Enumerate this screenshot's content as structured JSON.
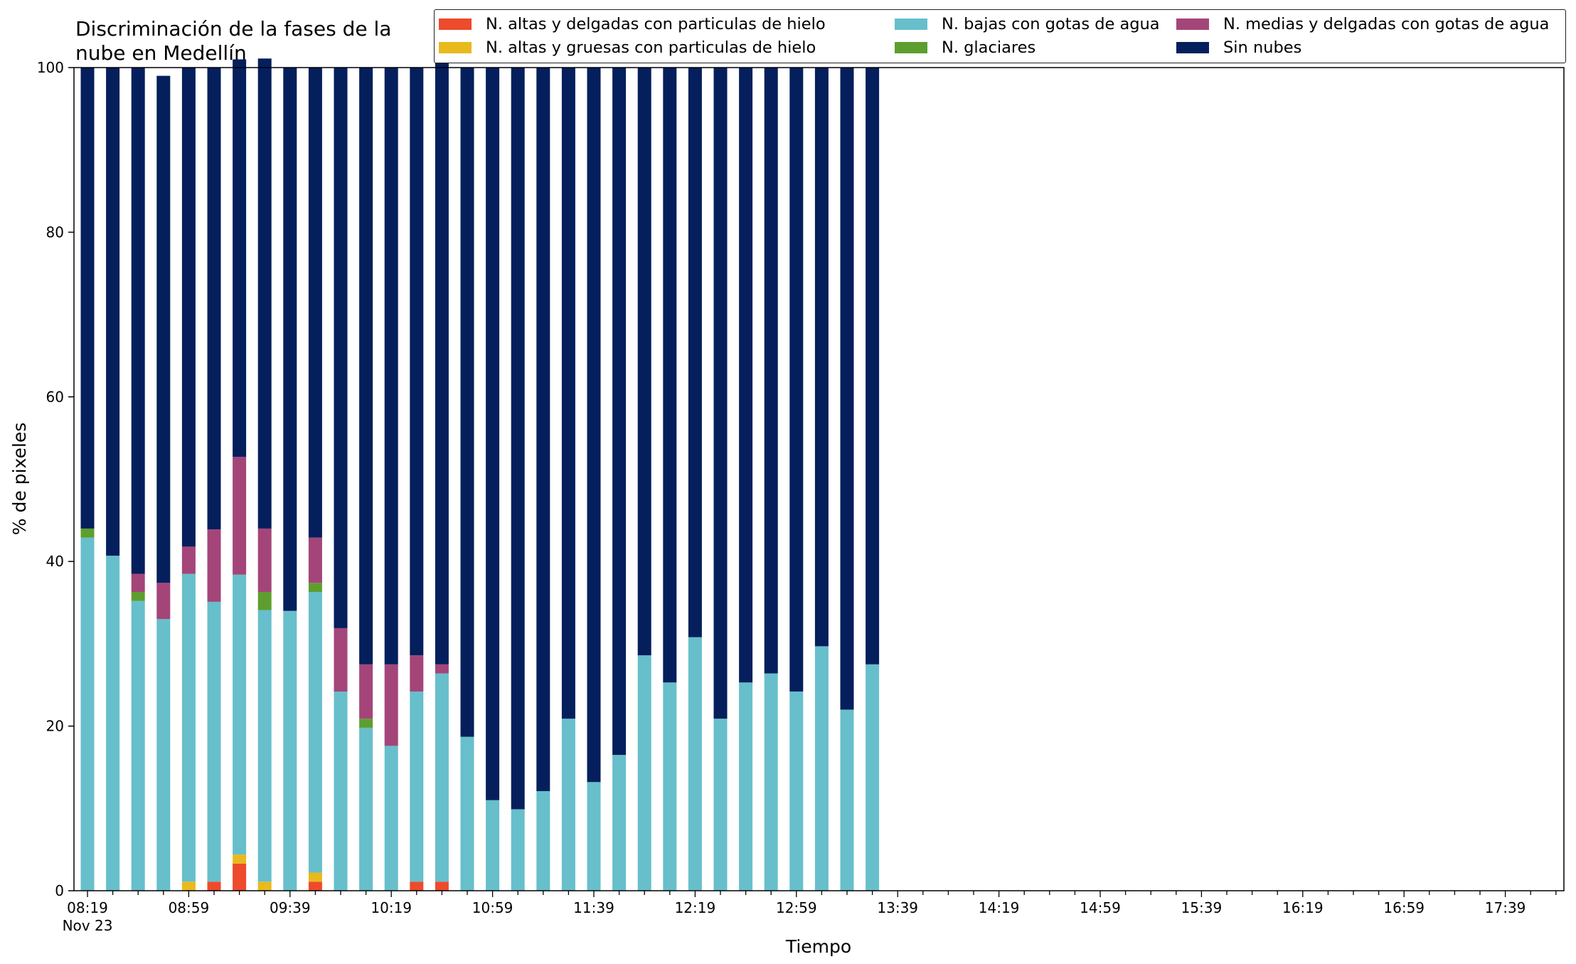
{
  "chart_data": {
    "type": "bar",
    "stacked": true,
    "title": "Discriminación de la fases de la\nnube en Medellín",
    "xlabel": "Tiempo",
    "ylabel": "% de pixeles",
    "ylim": [
      0,
      100
    ],
    "yticks": [
      0,
      20,
      40,
      60,
      80,
      100
    ],
    "xtick_labels": [
      "08:19",
      "08:59",
      "09:39",
      "10:19",
      "10:59",
      "11:39",
      "12:19",
      "12:59",
      "13:39",
      "14:19",
      "14:59",
      "15:39",
      "16:19",
      "16:59",
      "17:39"
    ],
    "xtick_sublabel": "Nov 23",
    "x_range": [
      "08:19",
      "17:49"
    ],
    "interval_minutes": 10,
    "legend_placement": "top-right",
    "categories": [
      "08:19",
      "08:29",
      "08:39",
      "08:49",
      "08:59",
      "09:09",
      "09:19",
      "09:29",
      "09:39",
      "09:49",
      "09:59",
      "10:09",
      "10:19",
      "10:29",
      "10:39",
      "10:49",
      "10:59",
      "11:09",
      "11:19",
      "11:29",
      "11:39",
      "11:49",
      "11:59",
      "12:09",
      "12:19",
      "12:29",
      "12:39",
      "12:49",
      "12:59",
      "13:09",
      "13:19",
      "13:29"
    ],
    "series": [
      {
        "name": "N. altas y delgadas con particulas de hielo",
        "color": "#ee4a2c",
        "values": [
          0,
          0,
          0,
          0,
          0,
          1.1,
          3.3,
          0,
          0,
          1.1,
          0,
          0,
          0,
          1.1,
          1.1,
          0,
          0,
          0,
          0,
          0,
          0,
          0,
          0,
          0,
          0,
          0,
          0,
          0,
          0,
          0,
          0,
          0
        ]
      },
      {
        "name": "N. altas y gruesas con particulas de hielo",
        "color": "#e8ba1c",
        "values": [
          0,
          0,
          0,
          0,
          1.1,
          0,
          1.1,
          1.1,
          0,
          1.1,
          0,
          0,
          0,
          0,
          0,
          0,
          0,
          0,
          0,
          0,
          0,
          0,
          0,
          0,
          0,
          0,
          0,
          0,
          0,
          0,
          0,
          0
        ]
      },
      {
        "name": "N. bajas con gotas de agua",
        "color": "#67bfcb",
        "values": [
          42.9,
          40.7,
          35.2,
          33.0,
          37.4,
          34.0,
          34.0,
          33.0,
          34.0,
          34.1,
          24.2,
          19.8,
          17.6,
          23.1,
          25.3,
          18.7,
          11.0,
          9.9,
          12.1,
          20.9,
          13.2,
          16.5,
          28.6,
          25.3,
          30.8,
          20.9,
          25.3,
          26.4,
          24.2,
          29.7,
          22.0,
          27.5
        ]
      },
      {
        "name": "N. glaciares",
        "color": "#5e9e2e",
        "values": [
          1.1,
          0,
          1.1,
          0,
          0,
          0,
          0,
          2.2,
          0,
          1.1,
          0,
          1.1,
          0,
          0,
          0,
          0,
          0,
          0,
          0,
          0,
          0,
          0,
          0,
          0,
          0,
          0,
          0,
          0,
          0,
          0,
          0,
          0
        ]
      },
      {
        "name": "N. medias y delgadas con gotas de agua",
        "color": "#a4457a",
        "values": [
          0,
          0,
          2.2,
          4.4,
          3.3,
          8.8,
          14.3,
          7.7,
          0,
          5.5,
          7.7,
          6.6,
          9.9,
          4.4,
          1.1,
          0,
          0,
          0,
          0,
          0,
          0,
          0,
          0,
          0,
          0,
          0,
          0,
          0,
          0,
          0,
          0,
          0
        ]
      },
      {
        "name": "Sin nubes",
        "color": "#041f5c",
        "values": [
          56.0,
          59.3,
          61.5,
          61.6,
          58.2,
          56.1,
          48.3,
          57.1,
          66.0,
          57.1,
          68.1,
          72.5,
          72.5,
          71.4,
          73.6,
          81.3,
          89.0,
          90.1,
          87.9,
          79.1,
          86.8,
          83.5,
          71.4,
          74.7,
          69.2,
          79.1,
          74.7,
          73.6,
          75.8,
          70.3,
          78.0,
          72.5
        ]
      }
    ]
  }
}
